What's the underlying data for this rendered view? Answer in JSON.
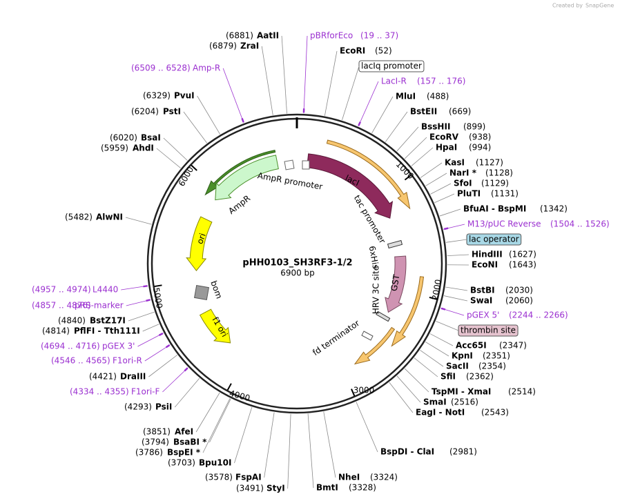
{
  "branding": {
    "prefix": "Created by",
    "product": "SnapGene"
  },
  "plasmid": {
    "title": "pHH0103_SH3RF3-1/2",
    "size": "6900 bp"
  },
  "enzymes": [
    {
      "name": "EcoRI",
      "position": "(52)"
    },
    {
      "name": "MluI",
      "position": "(488)"
    },
    {
      "name": "BstEII",
      "position": "(669)"
    },
    {
      "name": "BssHII",
      "position": "(899)"
    },
    {
      "name": "EcoRV",
      "position": "(938)"
    },
    {
      "name": "HpaI",
      "position": "(994)"
    },
    {
      "name": "KasI",
      "position": "(1127)"
    },
    {
      "name": "NarI *",
      "position": "(1128)"
    },
    {
      "name": "SfoI",
      "position": "(1129)"
    },
    {
      "name": "PluTI",
      "position": "(1131)"
    },
    {
      "name": "BfuAI - BspMI",
      "position": "(1342)"
    },
    {
      "name": "HindIII",
      "position": "(1627)"
    },
    {
      "name": "EcoNI",
      "position": "(1643)"
    },
    {
      "name": "BstBI",
      "position": "(2030)"
    },
    {
      "name": "SwaI",
      "position": "(2060)"
    },
    {
      "name": "Acc65I",
      "position": "(2347)"
    },
    {
      "name": "KpnI",
      "position": "(2351)"
    },
    {
      "name": "SacII",
      "position": "(2354)"
    },
    {
      "name": "SfiI",
      "position": "(2362)"
    },
    {
      "name": "TspMI - XmaI",
      "position": "(2514)"
    },
    {
      "name": "SmaI",
      "position": "(2516)"
    },
    {
      "name": "EagI - NotI",
      "position": "(2543)"
    },
    {
      "name": "BspDI - ClaI",
      "position": "(2981)"
    },
    {
      "name": "NheI",
      "position": "(3324)"
    },
    {
      "name": "BmtI",
      "position": "(3328)"
    },
    {
      "name": "AatII",
      "position": "(6881)"
    },
    {
      "name": "ZraI",
      "position": "(6879)"
    },
    {
      "name": "PvuI",
      "position": "(6329)"
    },
    {
      "name": "PstI",
      "position": "(6204)"
    },
    {
      "name": "BsaI",
      "position": "(6020)"
    },
    {
      "name": "AhdI",
      "position": "(5959)"
    },
    {
      "name": "AlwNI",
      "position": "(5482)"
    },
    {
      "name": "BstZ17I",
      "position": "(4840)"
    },
    {
      "name": "PflFI - Tth111I",
      "position": "(4814)"
    },
    {
      "name": "DraIII",
      "position": "(4421)"
    },
    {
      "name": "PsiI",
      "position": "(4293)"
    },
    {
      "name": "AfeI",
      "position": "(3851)"
    },
    {
      "name": "BsaBI *",
      "position": "(3794)"
    },
    {
      "name": "BspEI *",
      "position": "(3786)"
    },
    {
      "name": "Bpu10I",
      "position": "(3703)"
    },
    {
      "name": "FspAI",
      "position": "(3578)"
    },
    {
      "name": "StyI",
      "position": "(3491)"
    }
  ],
  "primers": [
    {
      "name": "pBRforEco",
      "range": "(19 .. 37)"
    },
    {
      "name": "LacI-R",
      "range": "(157 .. 176)"
    },
    {
      "name": "M13/pUC Reverse",
      "range": "(1504 .. 1526)"
    },
    {
      "name": "pGEX 5'",
      "range": "(2244 .. 2266)"
    },
    {
      "name": "Amp-R",
      "range": "(6509 .. 6528)"
    },
    {
      "name": "L4440",
      "range": "(4957 .. 4974)"
    },
    {
      "name": "pRS-marker",
      "range": "(4857 .. 4876)"
    },
    {
      "name": "pGEX 3'",
      "range": "(4694 .. 4716)"
    },
    {
      "name": "F1ori-R",
      "range": "(4546 .. 4565)"
    },
    {
      "name": "F1ori-F",
      "range": "(4334 .. 4355)"
    }
  ],
  "boxed_features": [
    "lacIq promoter",
    "lac operator",
    "thrombin site"
  ],
  "features": [
    "lacI",
    "AmpR",
    "AmpR promoter",
    "tac promoter",
    "6xHis",
    "HRV 3C site",
    "GST",
    "ori",
    "f1 ori",
    "bom",
    "fd terminator"
  ],
  "ruler": [
    "1000",
    "2000",
    "3000",
    "4000",
    "5000",
    "6000"
  ]
}
